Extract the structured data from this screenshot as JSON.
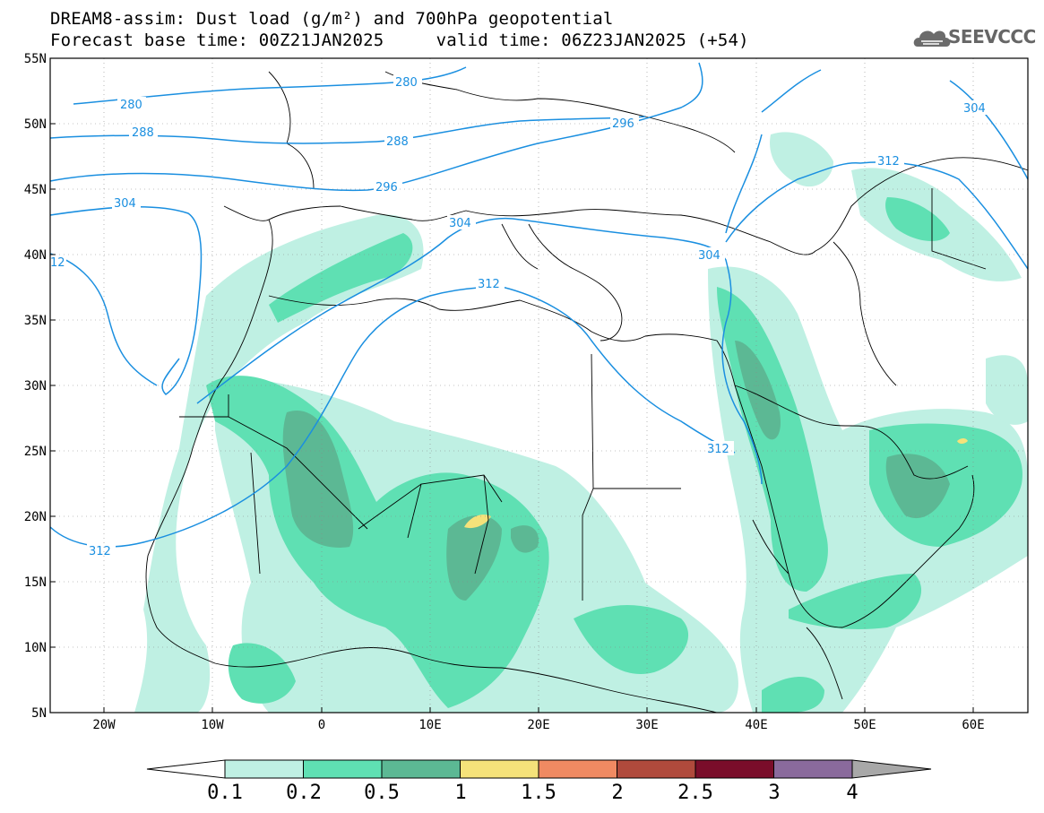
{
  "title": {
    "line1": "DREAM8-assim: Dust load (g/m²) and 700hPa geopotential",
    "line2": "Forecast base time: 00Z21JAN2025     valid time: 06Z23JAN2025 (+54)"
  },
  "logo": {
    "text": "SEEVCCC",
    "icon": "cloud-icon"
  },
  "axes": {
    "lat_labels": [
      "55N",
      "50N",
      "45N",
      "40N",
      "35N",
      "30N",
      "25N",
      "20N",
      "15N",
      "10N",
      "5N"
    ],
    "lon_labels": [
      "20W",
      "10W",
      "0",
      "10E",
      "20E",
      "30E",
      "40E",
      "50E",
      "60E"
    ]
  },
  "contour_labels": [
    "280",
    "280",
    "288",
    "288",
    "296",
    "296",
    "304",
    "304",
    "304",
    "312",
    "312",
    "312",
    "312",
    "304"
  ],
  "colorbar": {
    "labels": [
      "0.1",
      "0.2",
      "0.5",
      "1",
      "1.5",
      "2",
      "2.5",
      "3",
      "4"
    ],
    "colors": [
      "#ffffff",
      "#bff0e3",
      "#5fe0b3",
      "#5cb894",
      "#f5e27a",
      "#f08a62",
      "#b04a3c",
      "#7a0d2a",
      "#8a6a9c",
      "#a8a8a8"
    ]
  },
  "colors": {
    "contour": "#1a8fe0",
    "dust_low": "#bff0e3",
    "dust_mid": "#5fe0b3",
    "dust_high": "#5cb894",
    "dust_peak": "#f5e27a"
  }
}
